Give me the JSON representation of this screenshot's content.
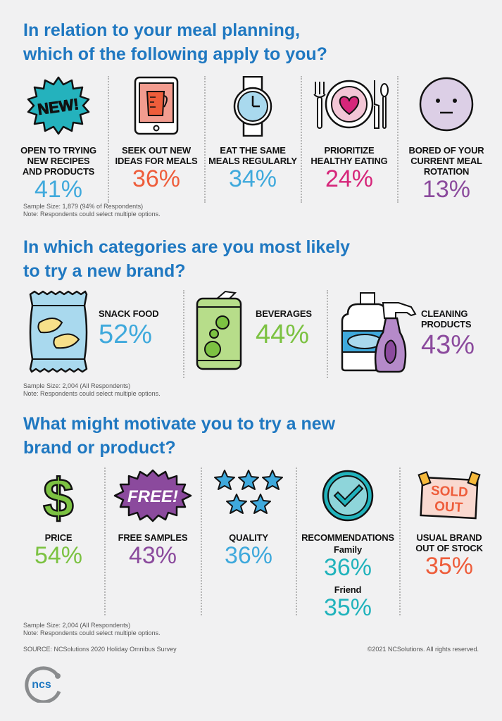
{
  "colors": {
    "heading_blue": "#1f78c1",
    "light_blue": "#3fa9dc",
    "coral": "#ee5d3b",
    "magenta": "#d6267a",
    "purple": "#8b4a9d",
    "green": "#7cc242",
    "teal": "#21b3bc",
    "gray": "#555555"
  },
  "section1": {
    "title_line1": "In relation to your meal planning,",
    "title_line2": "which of the following apply to you?",
    "items": [
      {
        "icon": "new-badge-icon",
        "badge_text": "NEW!",
        "label_lines": [
          "OPEN TO TRYING",
          "NEW RECIPES",
          "AND PRODUCTS"
        ],
        "value": "41%",
        "color": "#3fa9dc"
      },
      {
        "icon": "tablet-recipe-icon",
        "label_lines": [
          "SEEK OUT NEW",
          "IDEAS FOR MEALS"
        ],
        "value": "36%",
        "color": "#ee5d3b"
      },
      {
        "icon": "wristwatch-icon",
        "label_lines": [
          "EAT THE SAME",
          "MEALS REGULARLY"
        ],
        "value": "34%",
        "color": "#3fa9dc"
      },
      {
        "icon": "heart-plate-icon",
        "label_lines": [
          "PRIORITIZE",
          "HEALTHY EATING"
        ],
        "value": "24%",
        "color": "#d6267a"
      },
      {
        "icon": "neutral-face-icon",
        "label_lines": [
          "BORED OF YOUR",
          "CURRENT MEAL",
          "ROTATION"
        ],
        "value": "13%",
        "color": "#8b4a9d"
      }
    ],
    "note_line1": "Sample Size: 1,879 (94% of Respondents)",
    "note_line2": "Note: Respondents could select multiple options."
  },
  "section2": {
    "title_line1": "In which categories are you most likely",
    "title_line2": "to try a new brand?",
    "items": [
      {
        "icon": "chip-bag-icon",
        "label_lines": [
          "SNACK FOOD"
        ],
        "value": "52%",
        "color": "#3fa9dc"
      },
      {
        "icon": "soda-can-icon",
        "label_lines": [
          "BEVERAGES"
        ],
        "value": "44%",
        "color": "#7cc242"
      },
      {
        "icon": "cleaning-bottles-icon",
        "label_lines": [
          "CLEANING",
          "PRODUCTS"
        ],
        "value": "43%",
        "color": "#8b4a9d"
      }
    ],
    "note_line1": "Sample Size: 2,004 (All Respondents)",
    "note_line2": "Note: Respondents could select multiple options."
  },
  "section3": {
    "title_line1": "What might motivate you to try a new",
    "title_line2": "brand or product?",
    "items": [
      {
        "icon": "dollar-sign-icon",
        "label_lines": [
          "PRICE"
        ],
        "value": "54%",
        "color": "#7cc242"
      },
      {
        "icon": "free-burst-icon",
        "badge_text": "FREE!",
        "label_lines": [
          "FREE SAMPLES"
        ],
        "value": "43%",
        "color": "#8b4a9d"
      },
      {
        "icon": "stars-icon",
        "label_lines": [
          "QUALITY"
        ],
        "value": "36%",
        "color": "#3fa9dc"
      },
      {
        "icon": "checkmark-circle-icon",
        "label_lines": [
          "RECOMMENDATIONS"
        ],
        "sub": [
          {
            "label": "Family",
            "value": "36%"
          },
          {
            "label": "Friend",
            "value": "35%"
          }
        ],
        "color": "#21b3bc"
      },
      {
        "icon": "sold-out-sign-icon",
        "badge_line1": "SOLD",
        "badge_line2": "OUT",
        "label_lines": [
          "USUAL BRAND",
          "OUT OF STOCK"
        ],
        "value": "35%",
        "color": "#ee5d3b"
      }
    ],
    "note_line1": "Sample Size: 2,004 (All Respondents)",
    "note_line2": "Note: Respondents could select multiple options."
  },
  "footer": {
    "source": "SOURCE: NCSolutions 2020 Holiday Omnibus Survey",
    "copyright": "©2021 NCSolutions. All rights reserved.",
    "logo_text": "ncs"
  }
}
